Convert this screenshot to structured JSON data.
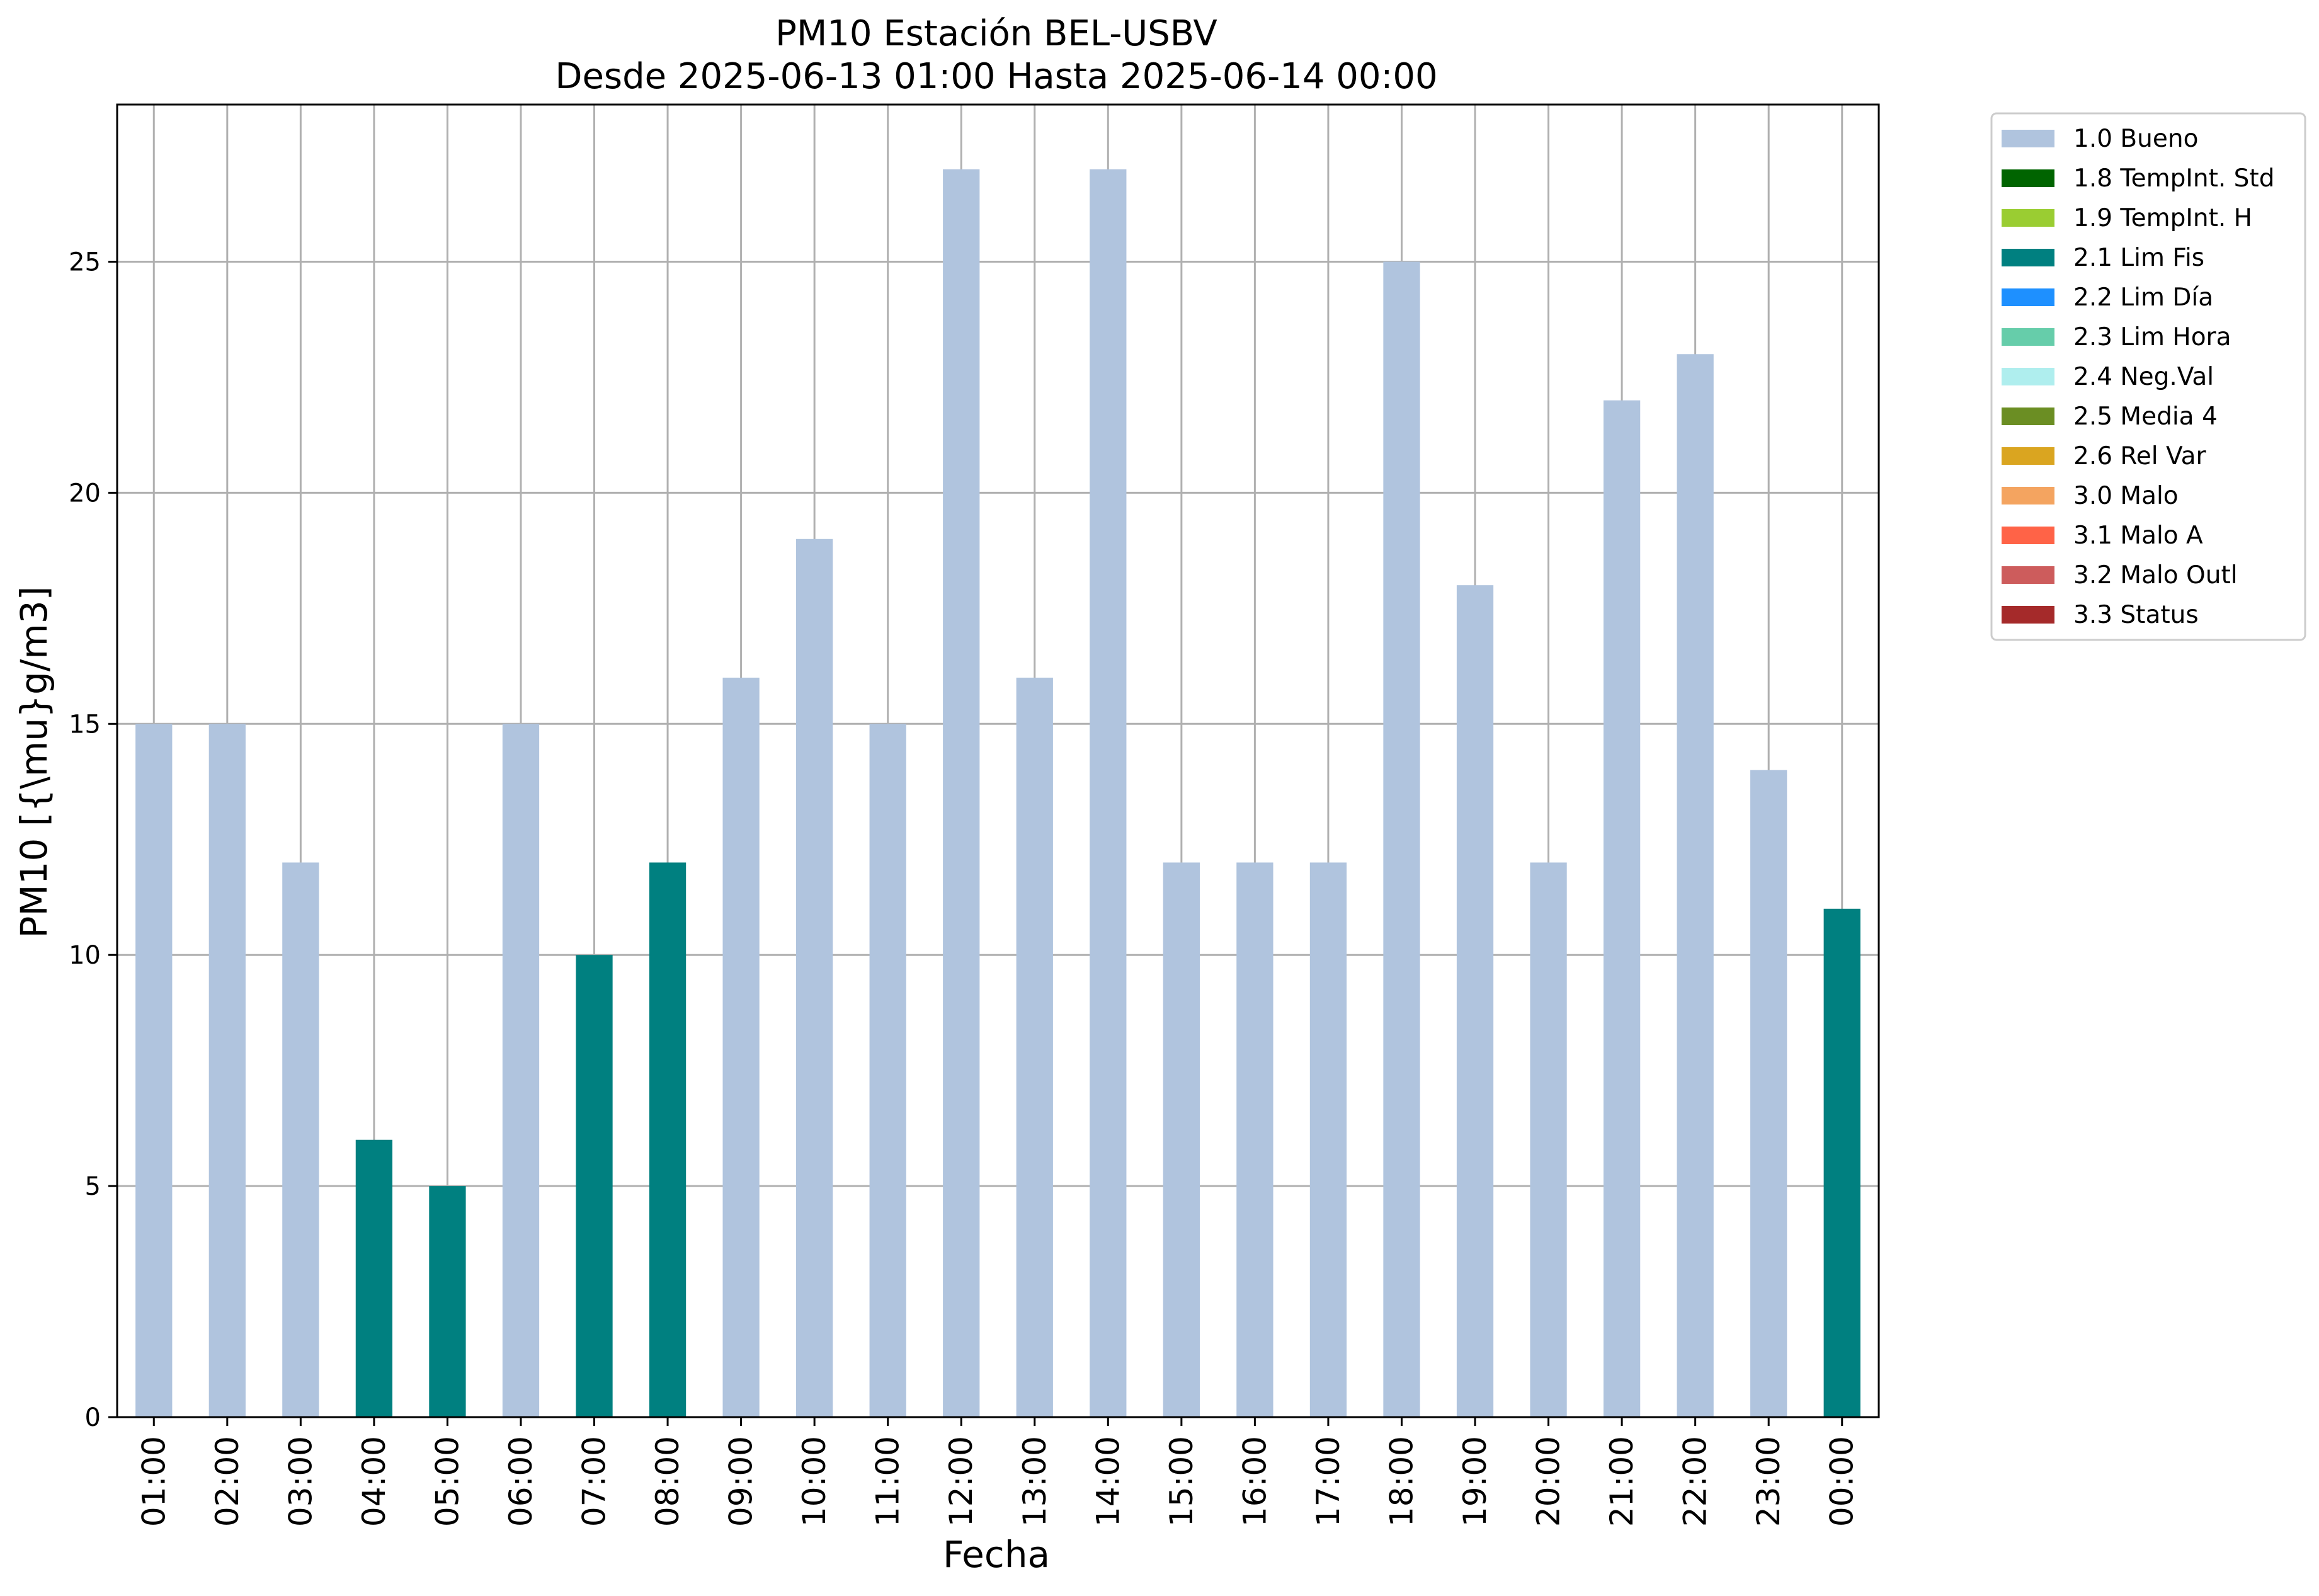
{
  "chart_data": {
    "type": "bar",
    "title": "PM10 Estación BEL-USBV",
    "subtitle": "Desde 2025-06-13 01:00 Hasta 2025-06-14 00:00",
    "xlabel": "Fecha",
    "ylabel": "PM10 [{\\mu}g/m3]",
    "ylim": [
      0,
      28.4
    ],
    "yticks": [
      "0",
      "5",
      "10",
      "15",
      "20",
      "25"
    ],
    "grid": true,
    "legend_position": "outside-top-right",
    "categories": [
      "01:00",
      "02:00",
      "03:00",
      "04:00",
      "05:00",
      "06:00",
      "07:00",
      "08:00",
      "09:00",
      "10:00",
      "11:00",
      "12:00",
      "13:00",
      "14:00",
      "15:00",
      "16:00",
      "17:00",
      "18:00",
      "19:00",
      "20:00",
      "21:00",
      "22:00",
      "23:00",
      "00:00"
    ],
    "values": [
      15,
      15,
      12,
      6,
      5,
      15,
      10,
      12,
      16,
      19,
      15,
      27,
      16,
      27,
      12,
      12,
      12,
      25,
      18,
      12,
      22,
      23,
      14,
      11
    ],
    "flags": [
      "1.0 Bueno",
      "1.0 Bueno",
      "1.0 Bueno",
      "2.1 Lim Fis",
      "2.1 Lim Fis",
      "1.0 Bueno",
      "2.1 Lim Fis",
      "2.1 Lim Fis",
      "1.0 Bueno",
      "1.0 Bueno",
      "1.0 Bueno",
      "1.0 Bueno",
      "1.0 Bueno",
      "1.0 Bueno",
      "1.0 Bueno",
      "1.0 Bueno",
      "1.0 Bueno",
      "1.0 Bueno",
      "1.0 Bueno",
      "1.0 Bueno",
      "1.0 Bueno",
      "1.0 Bueno",
      "1.0 Bueno",
      "2.1 Lim Fis"
    ],
    "legend": [
      {
        "label": "1.0 Bueno",
        "color": "#b0c4de"
      },
      {
        "label": "1.8 TempInt. Std",
        "color": "#006400"
      },
      {
        "label": "1.9 TempInt. H",
        "color": "#9acd32"
      },
      {
        "label": "2.1 Lim Fis",
        "color": "#008080"
      },
      {
        "label": "2.2 Lim Día",
        "color": "#1e90ff"
      },
      {
        "label": "2.3 Lim Hora",
        "color": "#66cdaa"
      },
      {
        "label": "2.4 Neg.Val",
        "color": "#afeeee"
      },
      {
        "label": "2.5 Media 4",
        "color": "#6b8e23"
      },
      {
        "label": "2.6 Rel Var",
        "color": "#daa520"
      },
      {
        "label": "3.0 Malo",
        "color": "#f4a460"
      },
      {
        "label": "3.1 Malo A",
        "color": "#ff6347"
      },
      {
        "label": "3.2 Malo Outl",
        "color": "#cd5c5c"
      },
      {
        "label": "3.3 Status",
        "color": "#a52a2a"
      }
    ]
  }
}
